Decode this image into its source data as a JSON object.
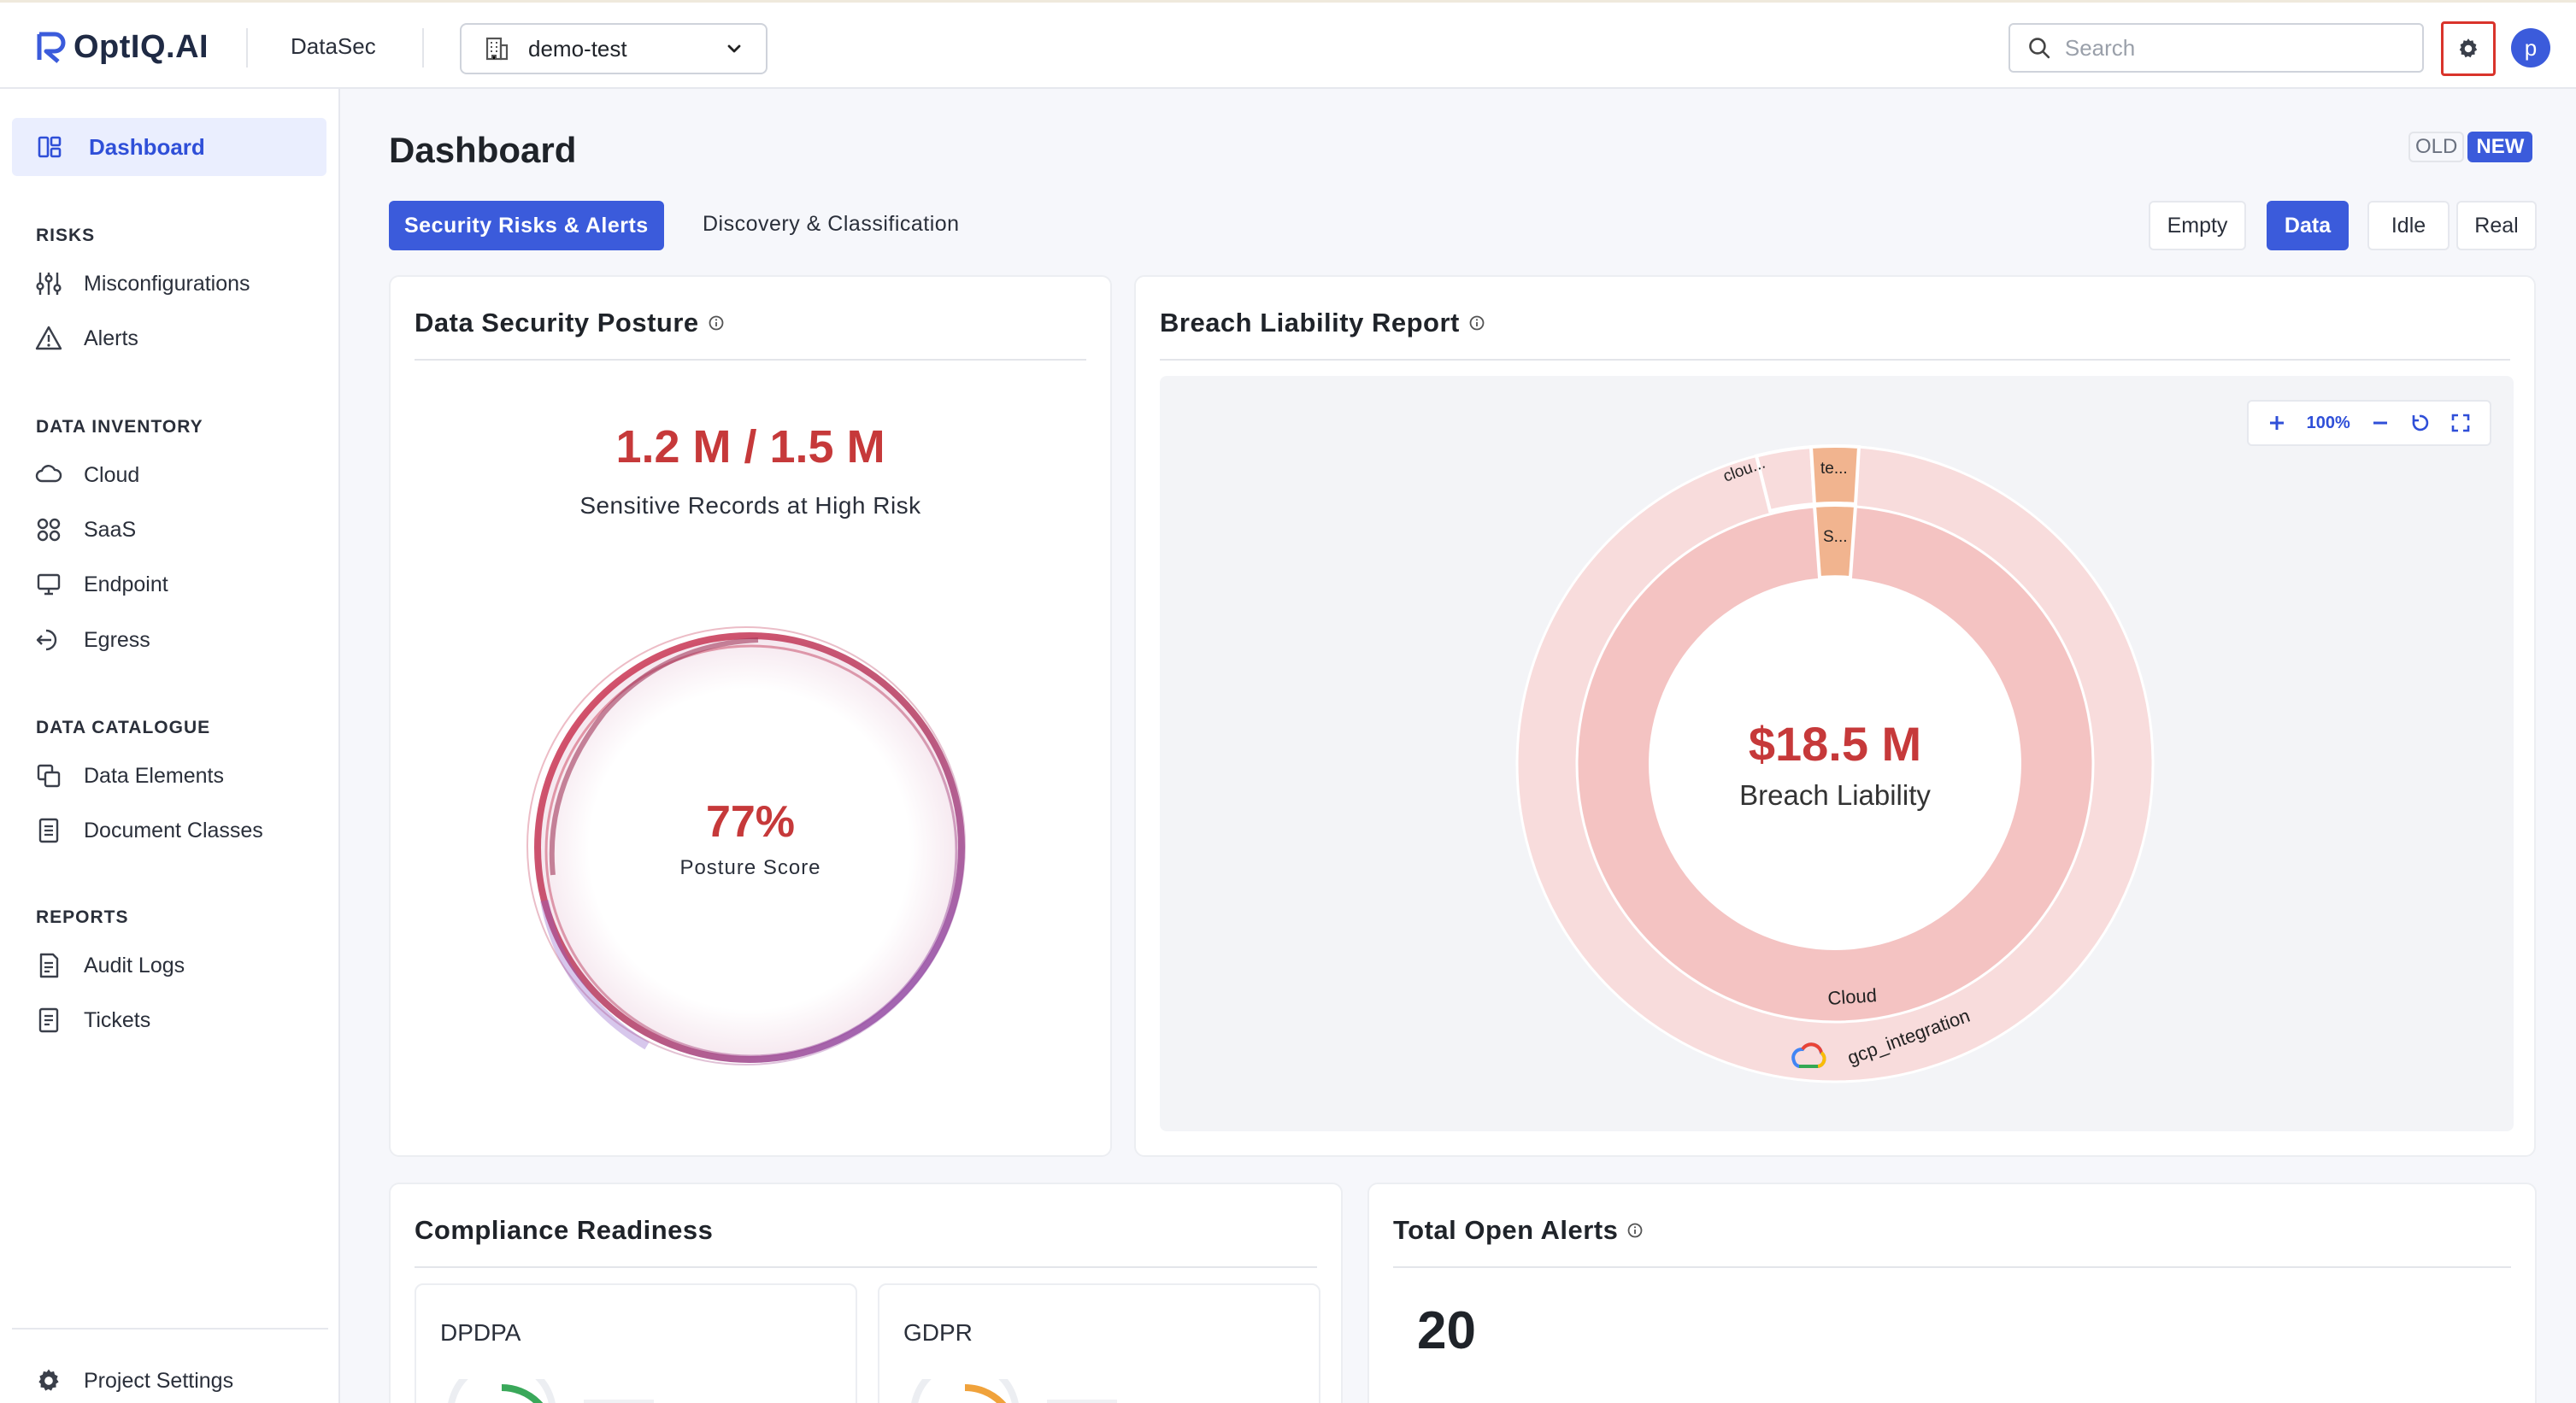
{
  "header": {
    "logo_text": "OptIQ.AI",
    "app_name": "DataSec",
    "project": "demo-test",
    "search_placeholder": "Search",
    "avatar_letter": "p"
  },
  "sidebar": {
    "active": "Dashboard",
    "sections": [
      {
        "title": "RISKS",
        "items": [
          "Misconfigurations",
          "Alerts"
        ]
      },
      {
        "title": "DATA INVENTORY",
        "items": [
          "Cloud",
          "SaaS",
          "Endpoint",
          "Egress"
        ]
      },
      {
        "title": "DATA CATALOGUE",
        "items": [
          "Data Elements",
          "Document Classes"
        ]
      },
      {
        "title": "REPORTS",
        "items": [
          "Audit Logs",
          "Tickets"
        ]
      }
    ],
    "bottom_item": "Project Settings"
  },
  "main": {
    "title": "Dashboard",
    "version_old": "OLD",
    "version_new": "NEW",
    "tabs": [
      "Security Risks & Alerts",
      "Discovery & Classification"
    ],
    "active_tab": "Security Risks & Alerts",
    "modes": [
      "Empty",
      "Data",
      "Idle",
      "Real"
    ],
    "active_mode": "Data"
  },
  "posture": {
    "title": "Data Security Posture",
    "records": "1.2 M / 1.5 M",
    "records_label": "Sensitive Records at High Risk",
    "score": "77%",
    "score_label": "Posture Score",
    "score_value": 0.77
  },
  "breach": {
    "title": "Breach Liability Report",
    "zoom": "100%",
    "total": "$18.5 M",
    "total_label": "Breach Liability",
    "inner_ring": [
      {
        "label": "Cloud",
        "color": "#f4c3c2"
      },
      {
        "label": "S...",
        "color": "#f1b48f"
      }
    ],
    "outer_ring": [
      {
        "label": "gcp_integration",
        "color": "#f8dcdc"
      },
      {
        "label": "clou...",
        "color": "#f8dcdc"
      },
      {
        "label": "te...",
        "color": "#f1b48f"
      }
    ]
  },
  "compliance": {
    "title": "Compliance Readiness",
    "frameworks": [
      {
        "name": "DPDPA",
        "color": "#3aa85a"
      },
      {
        "name": "GDPR",
        "color": "#f0a23b"
      }
    ]
  },
  "alerts": {
    "title": "Total Open Alerts",
    "count": "20"
  },
  "colors": {
    "accent": "#3b5bdb",
    "danger": "#c6393a"
  }
}
